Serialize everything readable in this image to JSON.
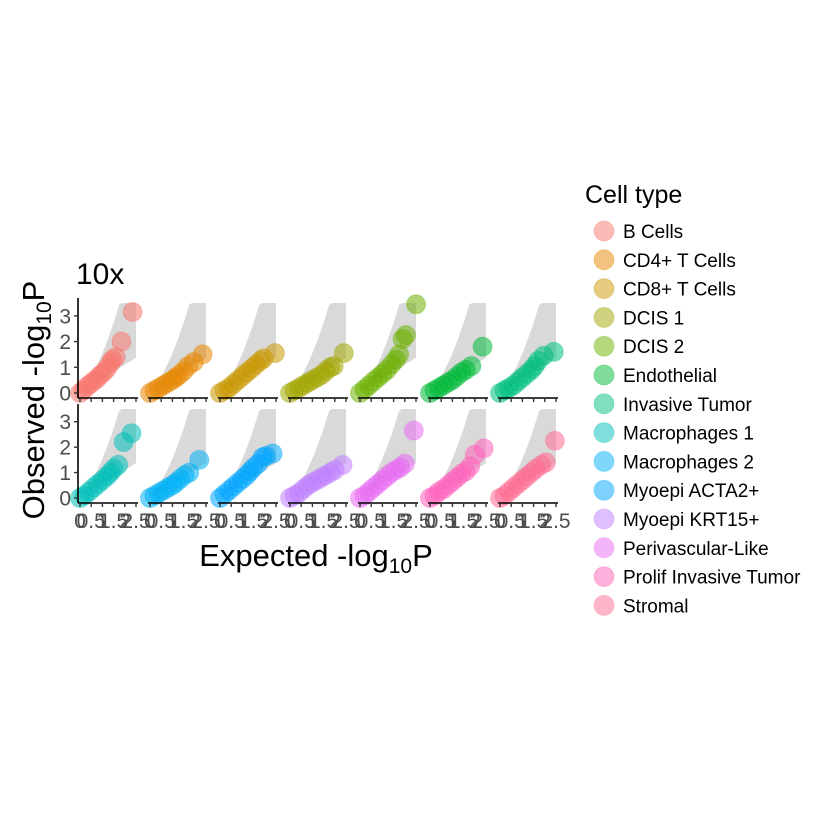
{
  "chart_data": {
    "type": "scatter",
    "title": "10x",
    "xlabel": {
      "main": "Expected -log",
      "sub": "10",
      "tail": "P"
    },
    "ylabel": {
      "main": "Observed -log",
      "sub": "10",
      "tail": "P"
    },
    "xlim": [
      0,
      2.5
    ],
    "ylim": [
      0,
      3.5
    ],
    "x_ticks": [
      {
        "value": 0,
        "label": "0"
      },
      {
        "value": 0.5,
        "label": "0.5"
      },
      {
        "value": 1,
        "label": "1"
      },
      {
        "value": 1.5,
        "label": "1.5"
      },
      {
        "value": 2,
        "label": "2"
      },
      {
        "value": 2.5,
        "label": "2.5"
      }
    ],
    "y_ticks": [
      {
        "value": 0,
        "label": "0"
      },
      {
        "value": 1,
        "label": "1"
      },
      {
        "value": 2,
        "label": "2"
      },
      {
        "value": 3,
        "label": "3"
      }
    ],
    "grid": false,
    "confidence_band": "gray",
    "legend": {
      "title": "Cell type",
      "placement": "right"
    },
    "series": [
      {
        "name": "B Cells",
        "color": "#F8766D",
        "points": [
          [
            0,
            0
          ],
          [
            0.15,
            0.1
          ],
          [
            0.3,
            0.25
          ],
          [
            0.45,
            0.35
          ],
          [
            0.6,
            0.45
          ],
          [
            0.75,
            0.55
          ],
          [
            0.9,
            0.7
          ],
          [
            1.05,
            0.8
          ],
          [
            1.2,
            0.95
          ],
          [
            1.35,
            1.15
          ],
          [
            1.45,
            1.3
          ],
          [
            1.6,
            1.4
          ],
          [
            1.85,
            2.0
          ],
          [
            2.35,
            3.15
          ]
        ]
      },
      {
        "name": "CD4+ T Cells",
        "color": "#E58700",
        "points": [
          [
            0,
            0
          ],
          [
            0.2,
            0.1
          ],
          [
            0.4,
            0.2
          ],
          [
            0.6,
            0.3
          ],
          [
            0.8,
            0.4
          ],
          [
            1.0,
            0.5
          ],
          [
            1.15,
            0.6
          ],
          [
            1.3,
            0.7
          ],
          [
            1.5,
            0.85
          ],
          [
            1.7,
            1.05
          ],
          [
            1.95,
            1.2
          ],
          [
            2.35,
            1.5
          ]
        ]
      },
      {
        "name": "CD8+ T Cells",
        "color": "#C99800",
        "points": [
          [
            0,
            0
          ],
          [
            0.2,
            0.1
          ],
          [
            0.4,
            0.2
          ],
          [
            0.6,
            0.35
          ],
          [
            0.8,
            0.5
          ],
          [
            1.0,
            0.65
          ],
          [
            1.2,
            0.8
          ],
          [
            1.4,
            0.95
          ],
          [
            1.6,
            1.1
          ],
          [
            1.8,
            1.25
          ],
          [
            1.95,
            1.35
          ],
          [
            2.45,
            1.55
          ]
        ]
      },
      {
        "name": "DCIS 1",
        "color": "#A3A500",
        "points": [
          [
            0,
            0
          ],
          [
            0.2,
            0.1
          ],
          [
            0.4,
            0.2
          ],
          [
            0.6,
            0.3
          ],
          [
            0.8,
            0.4
          ],
          [
            1.0,
            0.5
          ],
          [
            1.2,
            0.6
          ],
          [
            1.4,
            0.7
          ],
          [
            1.6,
            0.85
          ],
          [
            1.8,
            1.0
          ],
          [
            1.95,
            1.05
          ],
          [
            2.4,
            1.55
          ]
        ]
      },
      {
        "name": "DCIS 2",
        "color": "#6BB100",
        "points": [
          [
            0,
            0
          ],
          [
            0.2,
            0.15
          ],
          [
            0.4,
            0.3
          ],
          [
            0.6,
            0.45
          ],
          [
            0.8,
            0.6
          ],
          [
            1.0,
            0.75
          ],
          [
            1.2,
            0.9
          ],
          [
            1.4,
            1.1
          ],
          [
            1.6,
            1.3
          ],
          [
            1.75,
            1.5
          ],
          [
            1.9,
            2.1
          ],
          [
            2.05,
            2.25
          ],
          [
            2.5,
            3.45
          ]
        ]
      },
      {
        "name": "Endothelial",
        "color": "#00BA38",
        "points": [
          [
            0,
            0
          ],
          [
            0.2,
            0.1
          ],
          [
            0.4,
            0.2
          ],
          [
            0.6,
            0.3
          ],
          [
            0.8,
            0.4
          ],
          [
            1.0,
            0.5
          ],
          [
            1.2,
            0.65
          ],
          [
            1.4,
            0.8
          ],
          [
            1.6,
            0.9
          ],
          [
            1.85,
            1.05
          ],
          [
            2.35,
            1.8
          ]
        ]
      },
      {
        "name": "Invasive Tumor",
        "color": "#00BF7D",
        "points": [
          [
            0,
            0
          ],
          [
            0.2,
            0.1
          ],
          [
            0.4,
            0.2
          ],
          [
            0.6,
            0.3
          ],
          [
            0.8,
            0.45
          ],
          [
            1.0,
            0.6
          ],
          [
            1.2,
            0.75
          ],
          [
            1.4,
            0.9
          ],
          [
            1.55,
            1.05
          ],
          [
            1.7,
            1.25
          ],
          [
            1.95,
            1.45
          ],
          [
            2.4,
            1.6
          ]
        ]
      },
      {
        "name": "Macrophages 1",
        "color": "#00C0B8",
        "points": [
          [
            0,
            0
          ],
          [
            0.2,
            0.1
          ],
          [
            0.4,
            0.25
          ],
          [
            0.6,
            0.4
          ],
          [
            0.8,
            0.55
          ],
          [
            1.0,
            0.7
          ],
          [
            1.2,
            0.85
          ],
          [
            1.35,
            1.0
          ],
          [
            1.5,
            1.15
          ],
          [
            1.7,
            1.3
          ],
          [
            1.95,
            2.2
          ],
          [
            2.3,
            2.55
          ]
        ]
      },
      {
        "name": "Macrophages 2",
        "color": "#00B0F6",
        "points": [
          [
            0,
            0
          ],
          [
            0.2,
            0.1
          ],
          [
            0.4,
            0.2
          ],
          [
            0.6,
            0.3
          ],
          [
            0.8,
            0.4
          ],
          [
            1.0,
            0.5
          ],
          [
            1.15,
            0.6
          ],
          [
            1.35,
            0.75
          ],
          [
            1.55,
            0.9
          ],
          [
            1.75,
            1.0
          ],
          [
            2.2,
            1.5
          ]
        ]
      },
      {
        "name": "Myoepi ACTA2+",
        "color": "#00A5FF",
        "points": [
          [
            0,
            0
          ],
          [
            0.2,
            0.15
          ],
          [
            0.4,
            0.3
          ],
          [
            0.6,
            0.45
          ],
          [
            0.8,
            0.6
          ],
          [
            1.0,
            0.75
          ],
          [
            1.2,
            0.9
          ],
          [
            1.35,
            1.05
          ],
          [
            1.5,
            1.2
          ],
          [
            1.7,
            1.35
          ],
          [
            1.9,
            1.6
          ],
          [
            2.05,
            1.65
          ],
          [
            2.35,
            1.75
          ]
        ]
      },
      {
        "name": "Myoepi KRT15+",
        "color": "#BF80FF",
        "points": [
          [
            0,
            0
          ],
          [
            0.2,
            0.1
          ],
          [
            0.4,
            0.2
          ],
          [
            0.6,
            0.35
          ],
          [
            0.8,
            0.5
          ],
          [
            1.0,
            0.6
          ],
          [
            1.2,
            0.7
          ],
          [
            1.4,
            0.8
          ],
          [
            1.6,
            0.9
          ],
          [
            1.8,
            1.0
          ],
          [
            2.0,
            1.1
          ],
          [
            2.35,
            1.3
          ]
        ]
      },
      {
        "name": "Perivascular-Like",
        "color": "#E76BF3",
        "points": [
          [
            0,
            0
          ],
          [
            0.2,
            0.1
          ],
          [
            0.4,
            0.25
          ],
          [
            0.6,
            0.4
          ],
          [
            0.8,
            0.55
          ],
          [
            1.0,
            0.7
          ],
          [
            1.2,
            0.85
          ],
          [
            1.4,
            1.0
          ],
          [
            1.6,
            1.1
          ],
          [
            1.8,
            1.2
          ],
          [
            2.0,
            1.35
          ],
          [
            2.4,
            2.65
          ]
        ]
      },
      {
        "name": "Prolif Invasive Tumor",
        "color": "#FF62BC",
        "points": [
          [
            0,
            0
          ],
          [
            0.2,
            0.1
          ],
          [
            0.4,
            0.25
          ],
          [
            0.6,
            0.35
          ],
          [
            0.8,
            0.5
          ],
          [
            1.0,
            0.65
          ],
          [
            1.2,
            0.8
          ],
          [
            1.4,
            0.95
          ],
          [
            1.6,
            1.05
          ],
          [
            1.8,
            1.25
          ],
          [
            2.0,
            1.7
          ],
          [
            2.4,
            1.95
          ]
        ]
      },
      {
        "name": "Stromal",
        "color": "#FF6C91",
        "points": [
          [
            0,
            0
          ],
          [
            0.2,
            0.1
          ],
          [
            0.4,
            0.25
          ],
          [
            0.6,
            0.4
          ],
          [
            0.8,
            0.55
          ],
          [
            1.0,
            0.7
          ],
          [
            1.2,
            0.85
          ],
          [
            1.4,
            1.0
          ],
          [
            1.6,
            1.15
          ],
          [
            1.85,
            1.3
          ],
          [
            2.05,
            1.4
          ],
          [
            2.45,
            2.25
          ]
        ]
      }
    ]
  }
}
